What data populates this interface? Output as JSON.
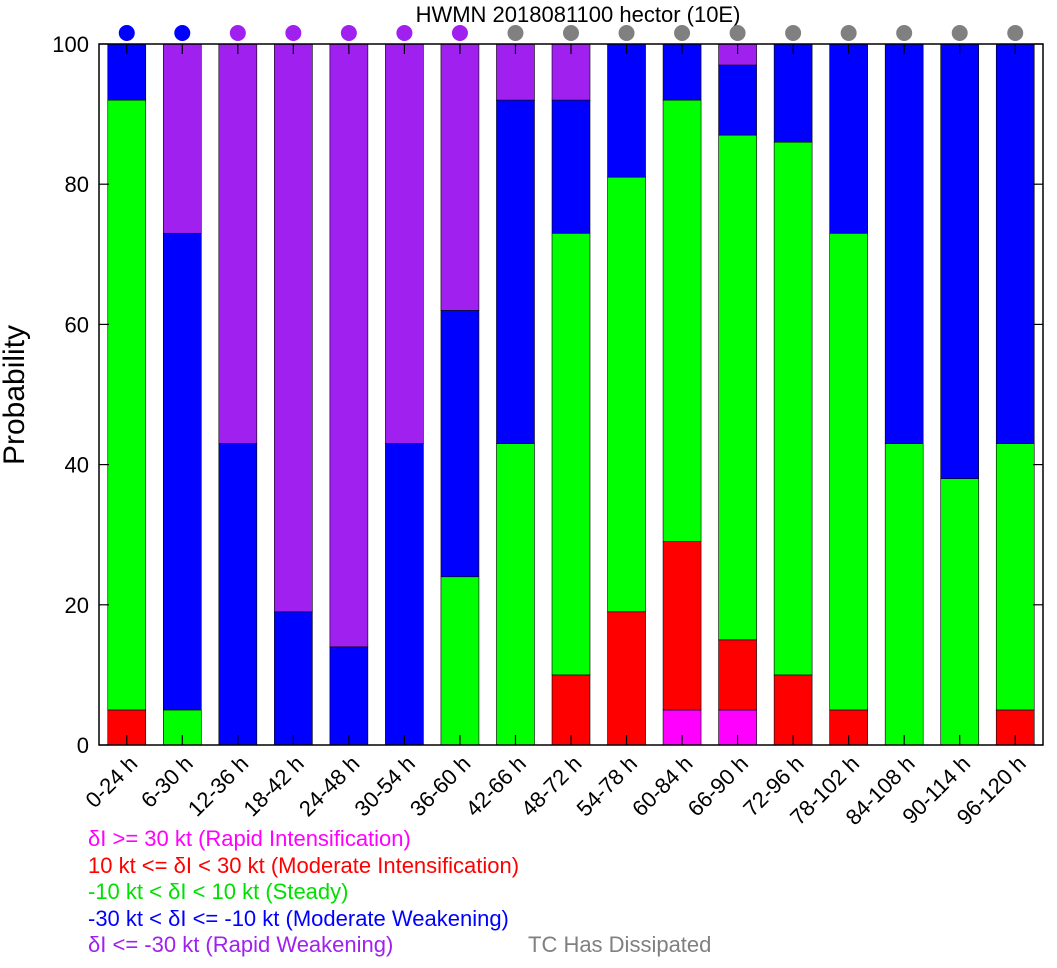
{
  "chart_data": {
    "type": "bar",
    "stacked": true,
    "title": "HWMN 2018081100 hector (10E)",
    "xlabel": "",
    "ylabel": "Probability",
    "ylim": [
      0,
      100
    ],
    "yticks": [
      0,
      20,
      40,
      60,
      80,
      100
    ],
    "grid": false,
    "categories": [
      "0-24 h",
      "6-30 h",
      "12-36 h",
      "18-42 h",
      "24-48 h",
      "30-54 h",
      "36-60 h",
      "42-66 h",
      "48-72 h",
      "54-78 h",
      "60-84 h",
      "66-90 h",
      "72-96 h",
      "78-102 h",
      "84-108 h",
      "90-114 h",
      "96-120 h"
    ],
    "series": [
      {
        "name": "δI >= 30 kt (Rapid Intensification)",
        "color": "#ff00ff",
        "values": [
          0,
          0,
          0,
          0,
          0,
          0,
          0,
          0,
          0,
          0,
          5,
          5,
          0,
          0,
          0,
          0,
          0
        ]
      },
      {
        "name": "10 kt <= δI < 30 kt (Moderate Intensification)",
        "color": "#ff0000",
        "values": [
          5,
          0,
          0,
          0,
          0,
          0,
          0,
          0,
          10,
          19,
          24,
          10,
          10,
          5,
          0,
          0,
          5
        ]
      },
      {
        "name": "-10 kt < δI < 10 kt (Steady)",
        "color": "#00ff00",
        "values": [
          87,
          5,
          0,
          0,
          0,
          0,
          24,
          43,
          63,
          62,
          63,
          72,
          76,
          68,
          43,
          38,
          38
        ]
      },
      {
        "name": "-30 kt < δI <= -10 kt (Moderate Weakening)",
        "color": "#0000ff",
        "values": [
          8,
          68,
          43,
          19,
          14,
          43,
          38,
          49,
          19,
          19,
          8,
          10,
          14,
          27,
          57,
          62,
          57
        ]
      },
      {
        "name": "δI <= -30 kt (Rapid Weakening)",
        "color": "#a020f0",
        "values": [
          0,
          27,
          57,
          81,
          86,
          57,
          38,
          8,
          8,
          0,
          0,
          3,
          0,
          0,
          0,
          0,
          0
        ]
      }
    ],
    "top_markers": {
      "colors": [
        "#0000ff",
        "#0000ff",
        "#a020f0",
        "#a020f0",
        "#a020f0",
        "#a020f0",
        "#a020f0",
        "#808080",
        "#808080",
        "#808080",
        "#808080",
        "#808080",
        "#808080",
        "#808080",
        "#808080",
        "#808080",
        "#808080"
      ]
    },
    "legend_position": "bottom-left",
    "extra_legend": {
      "label": "TC Has Dissipated",
      "color": "#808080"
    }
  }
}
